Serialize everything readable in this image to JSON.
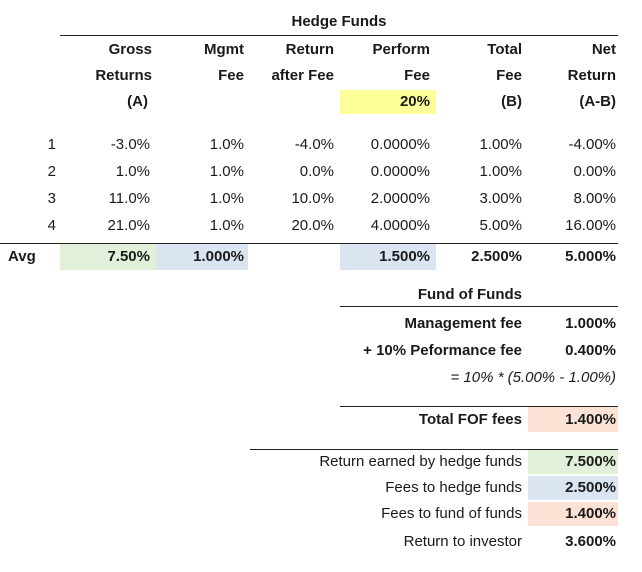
{
  "title": "Hedge Funds",
  "columns": [
    {
      "h1": "Gross",
      "h2": "Returns",
      "h3": "(A)"
    },
    {
      "h1": "Mgmt",
      "h2": "Fee",
      "h3": ""
    },
    {
      "h1": "Return",
      "h2": "after Fee",
      "h3": ""
    },
    {
      "h1": "Perform",
      "h2": "Fee",
      "h3": "20%"
    },
    {
      "h1": "Total",
      "h2": "Fee",
      "h3": "(B)"
    },
    {
      "h1": "Net",
      "h2": "Return",
      "h3": "(A-B)"
    }
  ],
  "rows": [
    {
      "label": "1",
      "cells": [
        "-3.0%",
        "1.0%",
        "-4.0%",
        "0.0000%",
        "1.00%",
        "-4.00%"
      ]
    },
    {
      "label": "2",
      "cells": [
        "1.0%",
        "1.0%",
        "0.0%",
        "0.0000%",
        "1.00%",
        "0.00%"
      ]
    },
    {
      "label": "3",
      "cells": [
        "11.0%",
        "1.0%",
        "10.0%",
        "2.0000%",
        "3.00%",
        "8.00%"
      ]
    },
    {
      "label": "4",
      "cells": [
        "21.0%",
        "1.0%",
        "20.0%",
        "4.0000%",
        "5.00%",
        "16.00%"
      ]
    }
  ],
  "avg": {
    "label": "Avg",
    "cells": [
      "7.50%",
      "1.000%",
      "",
      "1.500%",
      "2.500%",
      "5.000%"
    ]
  },
  "fof": {
    "title": "Fund of Funds",
    "mgmt_label": "Management fee",
    "mgmt_value": "1.000%",
    "perf_label": "+ 10% Peformance fee",
    "perf_value": "0.400%",
    "formula": "= 10% * (5.00% - 1.00%)",
    "total_label": "Total FOF fees",
    "total_value": "1.400%"
  },
  "summary": [
    {
      "label": "Return earned by hedge funds",
      "value": "7.500%"
    },
    {
      "label": "Fees to hedge funds",
      "value": "2.500%"
    },
    {
      "label": "Fees to fund of funds",
      "value": "1.400%"
    },
    {
      "label": "Return to investor",
      "value": "3.600%"
    }
  ],
  "colors": {
    "yellow": "#ffff99",
    "green": "#e2efd9",
    "blue": "#dbe5f1",
    "peach": "#fbe2d5"
  }
}
